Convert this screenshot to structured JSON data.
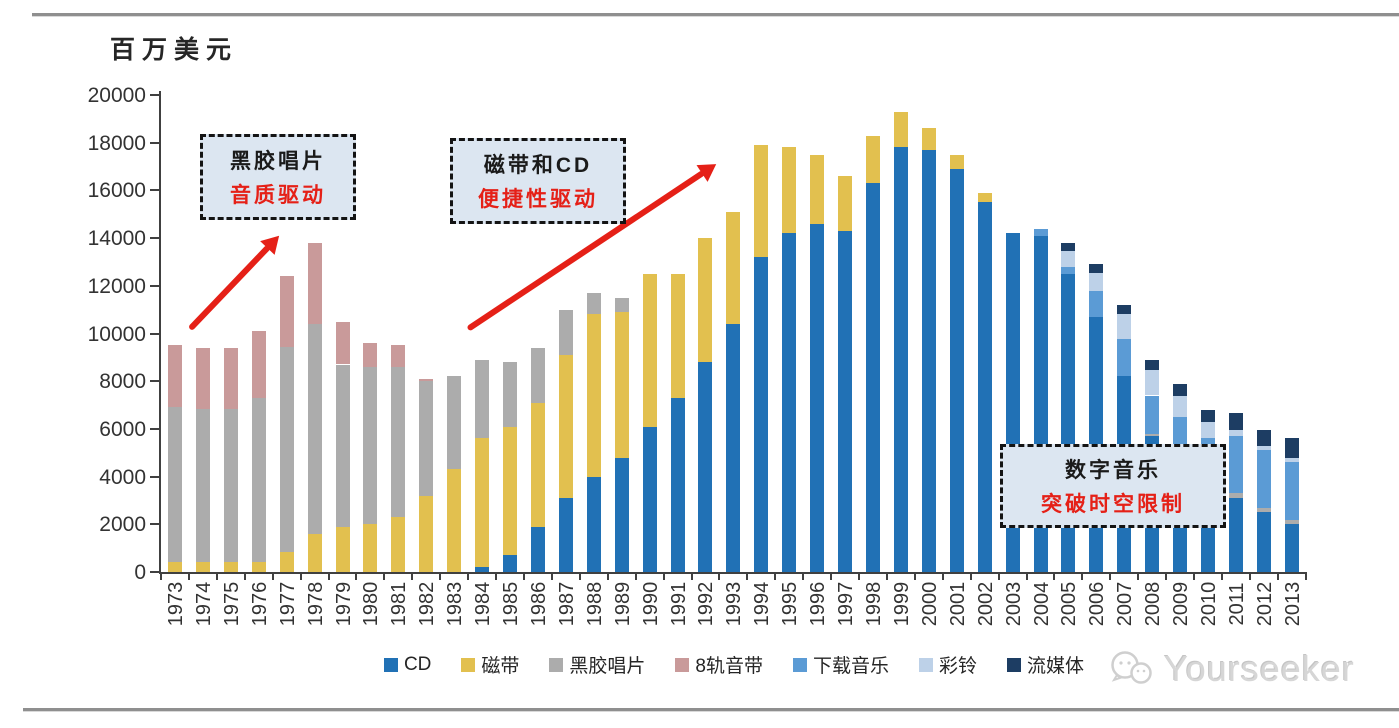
{
  "header": {
    "unit_label": "百万美元"
  },
  "annotations": [
    {
      "line1": "黑胶唱片",
      "line2": "音质驱动"
    },
    {
      "line1": "磁带和CD",
      "line2": "便捷性驱动"
    },
    {
      "line1": "数字音乐",
      "line2": "突破时空限制"
    }
  ],
  "watermark": {
    "text": "Yourseeker",
    "icon": "wechat-icon"
  },
  "colors": {
    "accent_red": "#e52017",
    "callout_fill": "#dce6f1",
    "callout_border": "#141414",
    "axis": "#404040",
    "rule_gray": "#8f8f8f",
    "watermark_gray": "#d6d6d6"
  },
  "chart_data": {
    "type": "bar",
    "stacked": true,
    "title": "",
    "ylabel": "百万美元",
    "xlabel": "",
    "ylim": [
      0,
      20000
    ],
    "y_tick_step": 2000,
    "grid": false,
    "legend_position": "bottom",
    "categories": [
      1973,
      1974,
      1975,
      1976,
      1977,
      1978,
      1979,
      1980,
      1981,
      1982,
      1983,
      1984,
      1985,
      1986,
      1987,
      1988,
      1989,
      1990,
      1991,
      1992,
      1993,
      1994,
      1995,
      1996,
      1997,
      1998,
      1999,
      2000,
      2001,
      2002,
      2003,
      2004,
      2005,
      2006,
      2007,
      2008,
      2009,
      2010,
      2011,
      2012,
      2013
    ],
    "series": [
      {
        "name": "CD",
        "color": "#2171b5",
        "values": [
          0,
          0,
          0,
          0,
          0,
          0,
          0,
          0,
          0,
          0,
          0,
          200,
          700,
          1900,
          3100,
          4000,
          4800,
          6100,
          7300,
          8800,
          10400,
          13200,
          14200,
          14600,
          14300,
          16300,
          17800,
          17700,
          16900,
          15500,
          14200,
          14100,
          12500,
          10700,
          8200,
          5700,
          5000,
          3300,
          3100,
          2500,
          2000
        ]
      },
      {
        "name": "磁带",
        "color": "#e2c04f",
        "values": [
          400,
          400,
          400,
          400,
          850,
          1600,
          1900,
          2000,
          2300,
          3200,
          4300,
          5400,
          5400,
          5200,
          6000,
          6800,
          6100,
          6400,
          5200,
          5200,
          4700,
          4700,
          3600,
          2900,
          2300,
          2000,
          1500,
          900,
          600,
          400,
          0,
          0,
          0,
          0,
          0,
          0,
          0,
          0,
          0,
          0,
          0
        ]
      },
      {
        "name": "黑胶唱片",
        "color": "#acacac",
        "values": [
          6500,
          6450,
          6450,
          6900,
          8600,
          8800,
          6800,
          6600,
          6300,
          4800,
          3900,
          3300,
          2700,
          2300,
          1900,
          900,
          600,
          0,
          0,
          0,
          0,
          0,
          0,
          0,
          0,
          0,
          0,
          0,
          0,
          0,
          0,
          0,
          0,
          0,
          0,
          100,
          100,
          100,
          200,
          200,
          200
        ]
      },
      {
        "name": "8轨音带",
        "color": "#c99a9a",
        "values": [
          2600,
          2550,
          2550,
          2800,
          2950,
          3400,
          1800,
          1000,
          900,
          100,
          0,
          0,
          0,
          0,
          0,
          0,
          0,
          0,
          0,
          0,
          0,
          0,
          0,
          0,
          0,
          0,
          0,
          0,
          0,
          0,
          0,
          0,
          0,
          0,
          0,
          0,
          0,
          0,
          0,
          0,
          0
        ]
      },
      {
        "name": "下载音乐",
        "color": "#5b9bd5",
        "values": [
          0,
          0,
          0,
          0,
          0,
          0,
          0,
          0,
          0,
          0,
          0,
          0,
          0,
          0,
          0,
          0,
          0,
          0,
          0,
          0,
          0,
          0,
          0,
          0,
          0,
          0,
          0,
          0,
          0,
          0,
          0,
          300,
          300,
          1100,
          1550,
          1600,
          1400,
          2200,
          2400,
          2400,
          2400
        ]
      },
      {
        "name": "彩铃",
        "color": "#bdd1e8",
        "values": [
          0,
          0,
          0,
          0,
          0,
          0,
          0,
          0,
          0,
          0,
          0,
          0,
          0,
          0,
          0,
          0,
          0,
          0,
          0,
          0,
          0,
          0,
          0,
          0,
          0,
          0,
          0,
          0,
          0,
          0,
          0,
          0,
          650,
          750,
          1050,
          1050,
          900,
          700,
          250,
          200,
          200
        ]
      },
      {
        "name": "流媒体",
        "color": "#1d3d63",
        "values": [
          0,
          0,
          0,
          0,
          0,
          0,
          0,
          0,
          0,
          0,
          0,
          0,
          0,
          0,
          0,
          0,
          0,
          0,
          0,
          0,
          0,
          0,
          0,
          0,
          0,
          0,
          0,
          0,
          0,
          0,
          0,
          0,
          350,
          350,
          400,
          450,
          500,
          500,
          700,
          650,
          800
        ]
      }
    ]
  }
}
